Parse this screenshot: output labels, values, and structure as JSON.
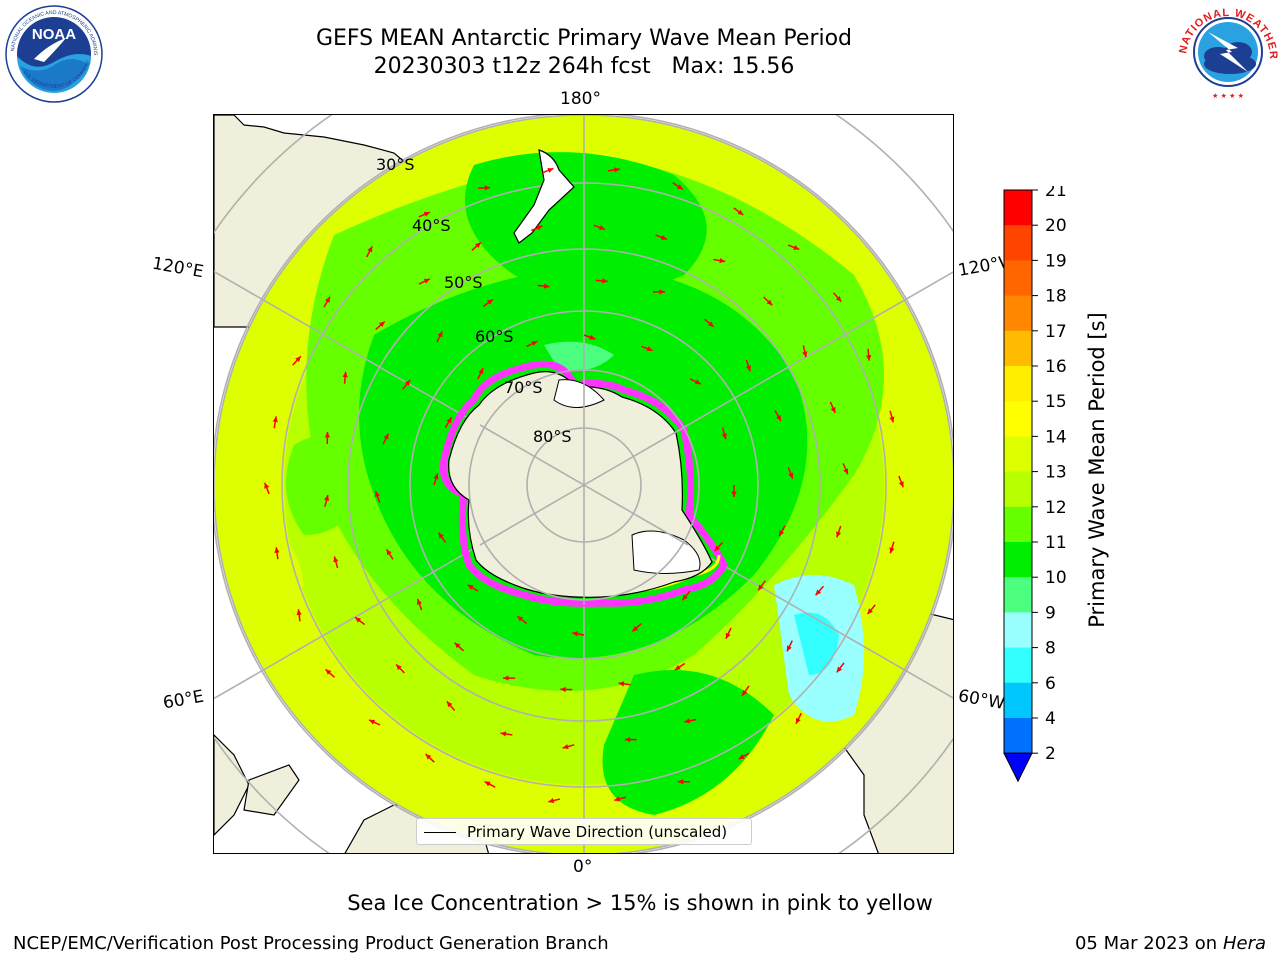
{
  "title_line1": "GEFS MEAN Antarctic Primary Wave Mean Period",
  "title_line2": "20230303 t12z 264h fcst   Max: 15.56",
  "logos": {
    "left": "noaa-logo",
    "right": "nws-logo"
  },
  "map": {
    "projection": "south-polar-stereographic",
    "lon_labels": {
      "top": "180°",
      "bottom": "0°",
      "left_upper": "120°E",
      "left_lower": "60°E",
      "right_upper": "120°W",
      "right_lower": "60°W"
    },
    "lat_labels": [
      "30°S",
      "40°S",
      "50°S",
      "60°S",
      "70°S",
      "80°S"
    ],
    "legend_label": "Primary Wave Direction (unscaled)",
    "arrow_color": "#ff0000",
    "ice_colors": [
      "#ff33ff",
      "#ffff00"
    ]
  },
  "colorbar": {
    "label": "Primary Wave Mean Period [s]",
    "ticks": [
      "2",
      "4",
      "6",
      "8",
      "9",
      "10",
      "11",
      "12",
      "13",
      "14",
      "15",
      "16",
      "17",
      "18",
      "19",
      "20",
      "21"
    ],
    "colors": [
      "#0070ff",
      "#00c8ff",
      "#33ffff",
      "#99ffff",
      "#4cff7f",
      "#00ee00",
      "#66ff00",
      "#b8ff00",
      "#ddff00",
      "#ffff00",
      "#ffee00",
      "#ffbb00",
      "#ff8800",
      "#ff6600",
      "#ff4400",
      "#ff0000"
    ],
    "extend_color": "#0000ff"
  },
  "ice_note": "Sea Ice Concentration > 15% is shown in pink to yellow",
  "footer_left": "NCEP/EMC/Verification Post Processing Product Generation Branch",
  "footer_date": "05 Mar 2023 on",
  "footer_host": "Hera"
}
